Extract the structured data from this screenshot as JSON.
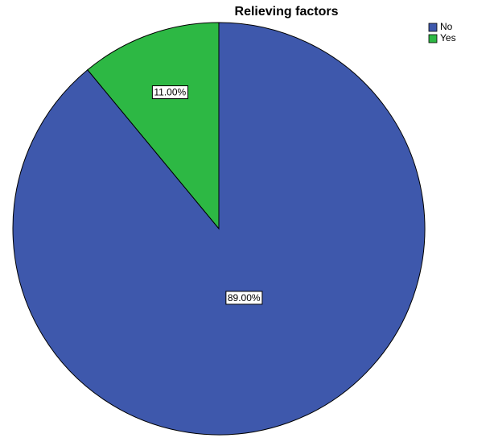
{
  "chart_data": {
    "type": "pie",
    "title": "Relieving factors",
    "categories": [
      "No",
      "Yes"
    ],
    "values": [
      89,
      11
    ],
    "value_labels": [
      "89.00%",
      "11.00%"
    ],
    "colors": [
      "#3e58ac",
      "#2db844"
    ],
    "legend": "top-right"
  }
}
